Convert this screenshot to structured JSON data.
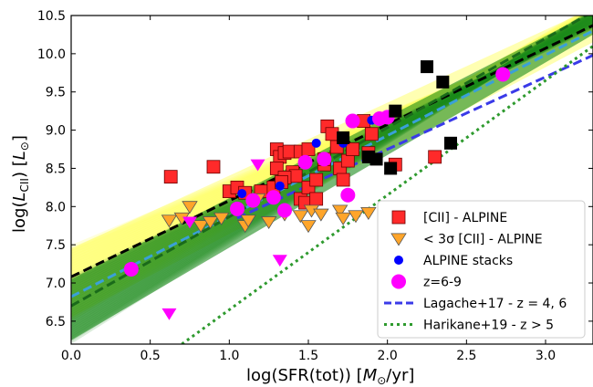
{
  "chart_data": {
    "type": "scatter",
    "xlabel": "log(SFR(tot)) [M⊙/yr]",
    "ylabel": "log(L_CII) [L⊙]",
    "xlim": [
      0.0,
      3.3
    ],
    "ylim": [
      6.2,
      10.5
    ],
    "xticks": [
      "0.0",
      "0.5",
      "1.0",
      "1.5",
      "2.0",
      "2.5",
      "3.0"
    ],
    "yticks": [
      "6.5",
      "7.0",
      "7.5",
      "8.0",
      "8.5",
      "9.0",
      "9.5",
      "10.0",
      "10.5"
    ],
    "grid": false,
    "legend_position": "lower-right",
    "legend": [
      {
        "label": "[CII] - ALPINE",
        "marker": "square",
        "color": "#ff2a2a"
      },
      {
        "label": "< 3σ [CII] - ALPINE",
        "marker": "triangle-down",
        "color": "#ffa52a"
      },
      {
        "label": "ALPINE stacks",
        "marker": "circle-small",
        "color": "#0000ff"
      },
      {
        "label": "z=6-9",
        "marker": "circle",
        "color": "#ff00ff"
      },
      {
        "label": "Lagache+17 - z = 4, 6",
        "marker": "dashed-line",
        "color": "#3a3ae8"
      },
      {
        "label": "Harikane+19 - z > 5",
        "marker": "dotted-line",
        "color": "#2e9a2e"
      }
    ],
    "series": [
      {
        "name": "[CII] - ALPINE",
        "color": "#ff2a2a",
        "marker": "square",
        "points": [
          [
            0.63,
            8.39
          ],
          [
            0.9,
            8.52
          ],
          [
            1.0,
            8.2
          ],
          [
            1.05,
            8.25
          ],
          [
            1.1,
            8.18
          ],
          [
            1.2,
            8.2
          ],
          [
            1.28,
            8.25
          ],
          [
            1.3,
            8.75
          ],
          [
            1.32,
            8.65
          ],
          [
            1.35,
            8.7
          ],
          [
            1.38,
            8.72
          ],
          [
            1.4,
            8.45
          ],
          [
            1.42,
            8.4
          ],
          [
            1.45,
            8.72
          ],
          [
            1.5,
            8.75
          ],
          [
            1.3,
            8.5
          ],
          [
            1.35,
            8.38
          ],
          [
            1.33,
            8.32
          ],
          [
            1.45,
            8.1
          ],
          [
            1.48,
            8.05
          ],
          [
            1.5,
            8.25
          ],
          [
            1.55,
            8.1
          ],
          [
            1.55,
            8.35
          ],
          [
            1.6,
            8.55
          ],
          [
            1.62,
            9.05
          ],
          [
            1.65,
            8.95
          ],
          [
            1.68,
            8.78
          ],
          [
            1.7,
            8.5
          ],
          [
            1.72,
            8.35
          ],
          [
            1.75,
            8.6
          ],
          [
            1.78,
            8.75
          ],
          [
            1.85,
            9.12
          ],
          [
            1.88,
            8.7
          ],
          [
            1.9,
            8.95
          ],
          [
            2.05,
            8.55
          ],
          [
            2.3,
            8.65
          ],
          [
            1.6,
            8.62
          ]
        ]
      },
      {
        "name": "< 3σ [CII] - ALPINE",
        "color": "#ffa52a",
        "marker": "triangle-down",
        "points": [
          [
            0.62,
            7.82
          ],
          [
            0.7,
            7.85
          ],
          [
            0.75,
            8.0
          ],
          [
            0.82,
            7.75
          ],
          [
            0.88,
            7.8
          ],
          [
            0.95,
            7.85
          ],
          [
            1.1,
            7.75
          ],
          [
            1.12,
            7.82
          ],
          [
            1.18,
            8.1
          ],
          [
            1.25,
            7.8
          ],
          [
            1.35,
            7.9
          ],
          [
            1.45,
            7.88
          ],
          [
            1.52,
            7.95
          ],
          [
            1.58,
            7.9
          ],
          [
            1.7,
            7.95
          ],
          [
            1.72,
            7.85
          ],
          [
            1.8,
            7.88
          ],
          [
            1.88,
            7.92
          ],
          [
            1.5,
            7.75
          ]
        ]
      },
      {
        "name": "ALPINE stacks",
        "color": "#0000ff",
        "marker": "circle-small",
        "points": [
          [
            1.08,
            8.17
          ],
          [
            1.32,
            8.27
          ],
          [
            1.55,
            8.83
          ],
          [
            1.72,
            8.83
          ],
          [
            1.9,
            9.13
          ]
        ]
      },
      {
        "name": "z=6-9",
        "color": "#ff00ff",
        "marker": "circle",
        "points": [
          [
            0.38,
            7.18
          ],
          [
            1.05,
            7.97
          ],
          [
            1.15,
            8.08
          ],
          [
            1.28,
            8.12
          ],
          [
            1.35,
            7.95
          ],
          [
            1.48,
            8.58
          ],
          [
            1.6,
            8.62
          ],
          [
            1.75,
            8.15
          ],
          [
            1.78,
            9.12
          ],
          [
            1.95,
            9.15
          ],
          [
            2.0,
            9.17
          ],
          [
            2.73,
            9.73
          ]
        ]
      },
      {
        "name": "upper limits z=6-9",
        "color": "#ff00ff",
        "marker": "triangle-down",
        "points": [
          [
            0.62,
            6.6
          ],
          [
            0.75,
            7.8
          ],
          [
            1.18,
            8.55
          ],
          [
            1.32,
            7.3
          ]
        ]
      },
      {
        "name": "black squares",
        "color": "#000000",
        "marker": "square",
        "points": [
          [
            1.72,
            8.9
          ],
          [
            1.88,
            8.65
          ],
          [
            1.93,
            8.62
          ],
          [
            2.02,
            8.5
          ],
          [
            2.05,
            9.25
          ],
          [
            2.25,
            9.83
          ],
          [
            2.35,
            9.63
          ],
          [
            2.4,
            8.83
          ]
        ]
      }
    ],
    "lines": [
      {
        "name": "Lagache+17 - z = 4, 6",
        "style": "dashed",
        "color": "#3a3ae8",
        "x": [
          1.05,
          3.3
        ],
        "y": [
          7.85,
          9.98
        ]
      },
      {
        "name": "Harikane+19 - z > 5",
        "style": "dotted",
        "color": "#2e9a2e",
        "x": [
          0.7,
          3.3
        ],
        "y": [
          6.2,
          10.1
        ]
      },
      {
        "style": "dashed",
        "color": "#000000",
        "x": [
          0.0,
          3.3
        ],
        "y": [
          7.08,
          10.37
        ]
      },
      {
        "style": "dashed",
        "color": "#3aa0d8",
        "x": [
          0.0,
          3.3
        ],
        "y": [
          6.82,
          10.3
        ]
      },
      {
        "style": "dashed",
        "color": "#1a6a1a",
        "x": [
          0.0,
          3.3
        ],
        "y": [
          6.7,
          10.55
        ]
      }
    ],
    "bands": [
      {
        "color": "#ffff55",
        "x": [
          0.0,
          3.3
        ],
        "y_low": [
          6.55,
          10.15
        ],
        "y_high": [
          7.45,
          10.6
        ]
      },
      {
        "color": "#1a8a1a",
        "x": [
          0.0,
          3.3
        ],
        "y_low": [
          6.25,
          10.25
        ],
        "y_high": [
          7.05,
          10.55
        ]
      }
    ]
  }
}
